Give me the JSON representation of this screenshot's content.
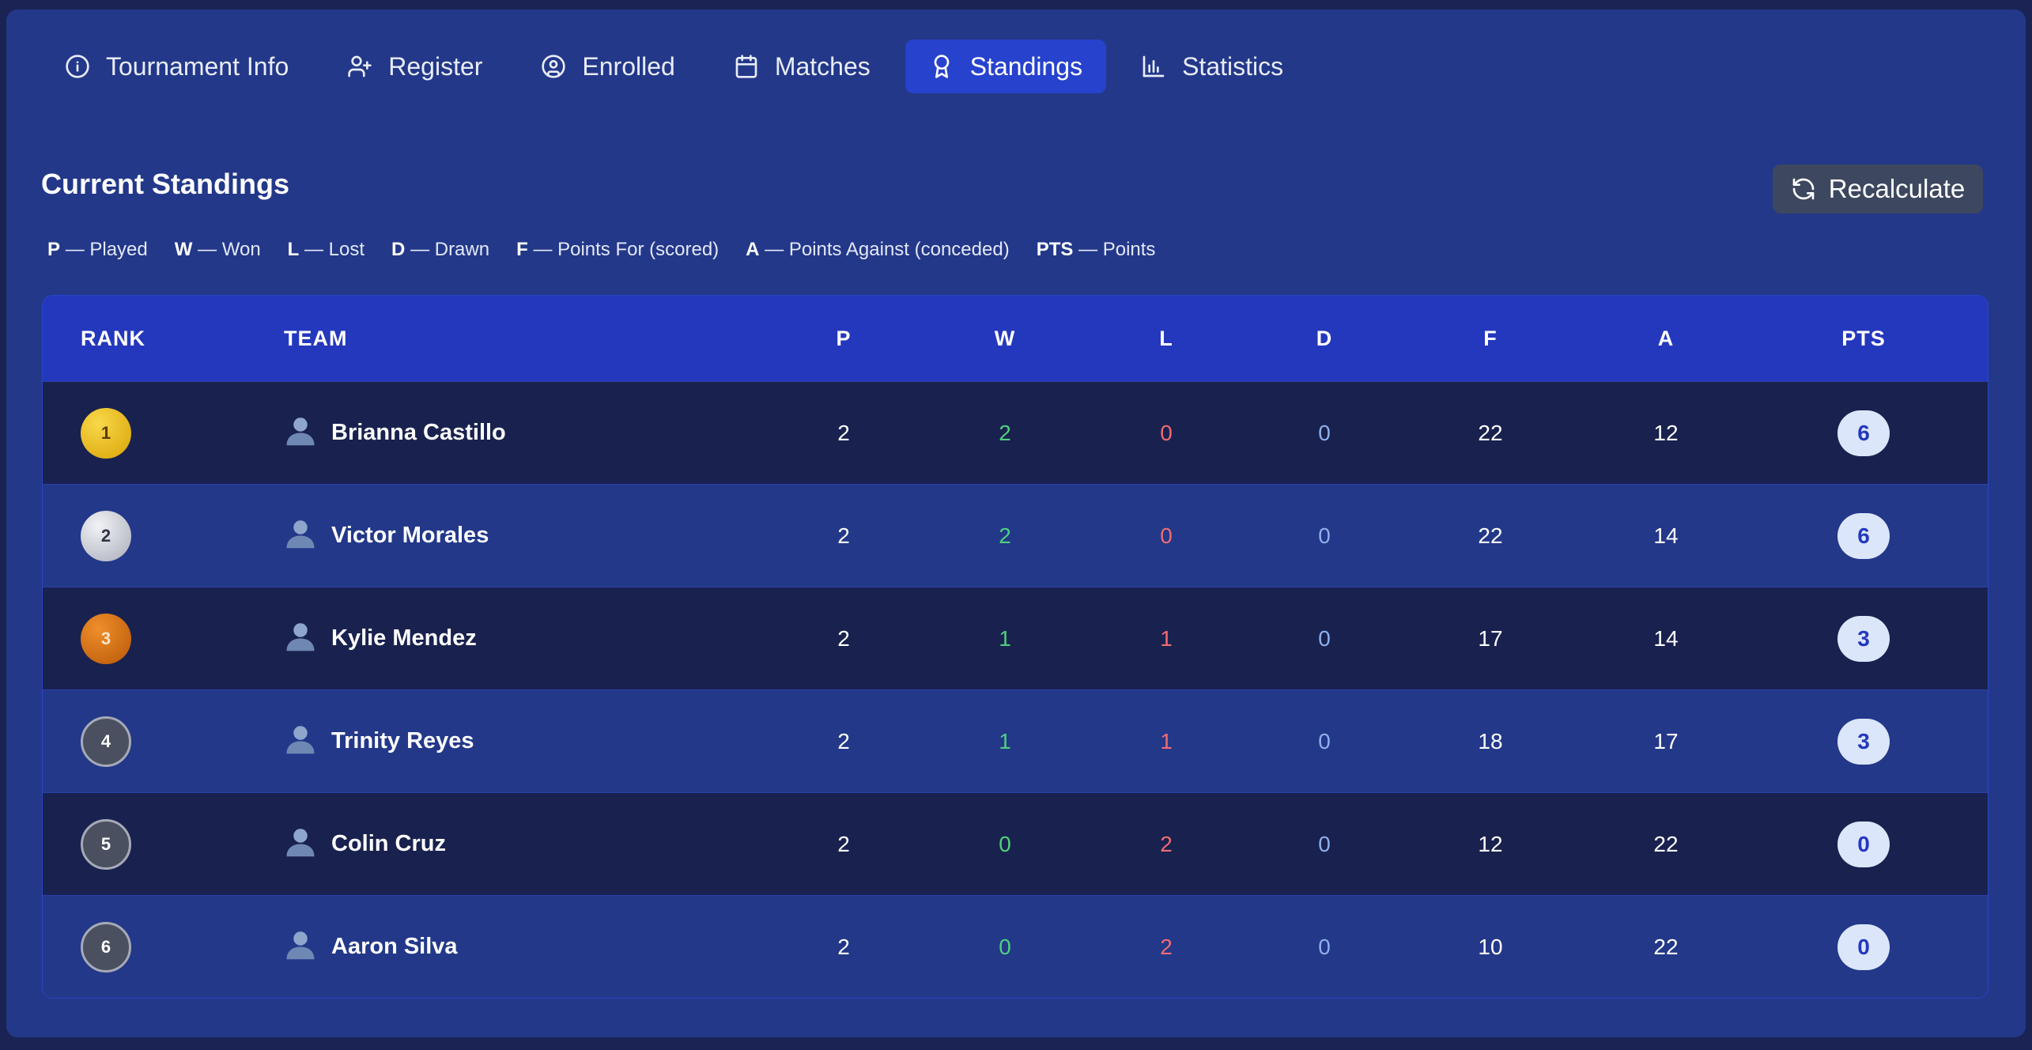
{
  "tabs": [
    {
      "label": "Tournament Info",
      "icon": "info-icon",
      "active": false
    },
    {
      "label": "Register",
      "icon": "user-plus-icon",
      "active": false
    },
    {
      "label": "Enrolled",
      "icon": "user-circle-icon",
      "active": false
    },
    {
      "label": "Matches",
      "icon": "calendar-icon",
      "active": false
    },
    {
      "label": "Standings",
      "icon": "award-icon",
      "active": true
    },
    {
      "label": "Statistics",
      "icon": "bar-chart-icon",
      "active": false
    }
  ],
  "section": {
    "title": "Current Standings",
    "recalculate_label": "Recalculate"
  },
  "legend": [
    {
      "key": "P",
      "text": "— Played"
    },
    {
      "key": "W",
      "text": "— Won"
    },
    {
      "key": "L",
      "text": "— Lost"
    },
    {
      "key": "D",
      "text": "— Drawn"
    },
    {
      "key": "F",
      "text": "— Points For (scored)"
    },
    {
      "key": "A",
      "text": "— Points Against (conceded)"
    },
    {
      "key": "PTS",
      "text": "— Points"
    }
  ],
  "table": {
    "headers": {
      "rank": "RANK",
      "team": "TEAM",
      "p": "P",
      "w": "W",
      "l": "L",
      "d": "D",
      "f": "F",
      "a": "A",
      "pts": "PTS"
    },
    "rows": [
      {
        "rank": "1",
        "team": "Brianna Castillo",
        "p": "2",
        "w": "2",
        "l": "0",
        "d": "0",
        "f": "22",
        "a": "12",
        "pts": "6"
      },
      {
        "rank": "2",
        "team": "Victor Morales",
        "p": "2",
        "w": "2",
        "l": "0",
        "d": "0",
        "f": "22",
        "a": "14",
        "pts": "6"
      },
      {
        "rank": "3",
        "team": "Kylie Mendez",
        "p": "2",
        "w": "1",
        "l": "1",
        "d": "0",
        "f": "17",
        "a": "14",
        "pts": "3"
      },
      {
        "rank": "4",
        "team": "Trinity Reyes",
        "p": "2",
        "w": "1",
        "l": "1",
        "d": "0",
        "f": "18",
        "a": "17",
        "pts": "3"
      },
      {
        "rank": "5",
        "team": "Colin Cruz",
        "p": "2",
        "w": "0",
        "l": "2",
        "d": "0",
        "f": "12",
        "a": "22",
        "pts": "0"
      },
      {
        "rank": "6",
        "team": "Aaron Silva",
        "p": "2",
        "w": "0",
        "l": "2",
        "d": "0",
        "f": "10",
        "a": "22",
        "pts": "0"
      }
    ]
  },
  "colors": {
    "background": "#1a2353",
    "panel": "#233889",
    "accent": "#2742cc",
    "win": "#4fd07b",
    "loss": "#f06b72",
    "draw": "#8fb0ec",
    "gold": "#e5b511",
    "silver": "#c9ccd4",
    "bronze": "#d77211"
  }
}
